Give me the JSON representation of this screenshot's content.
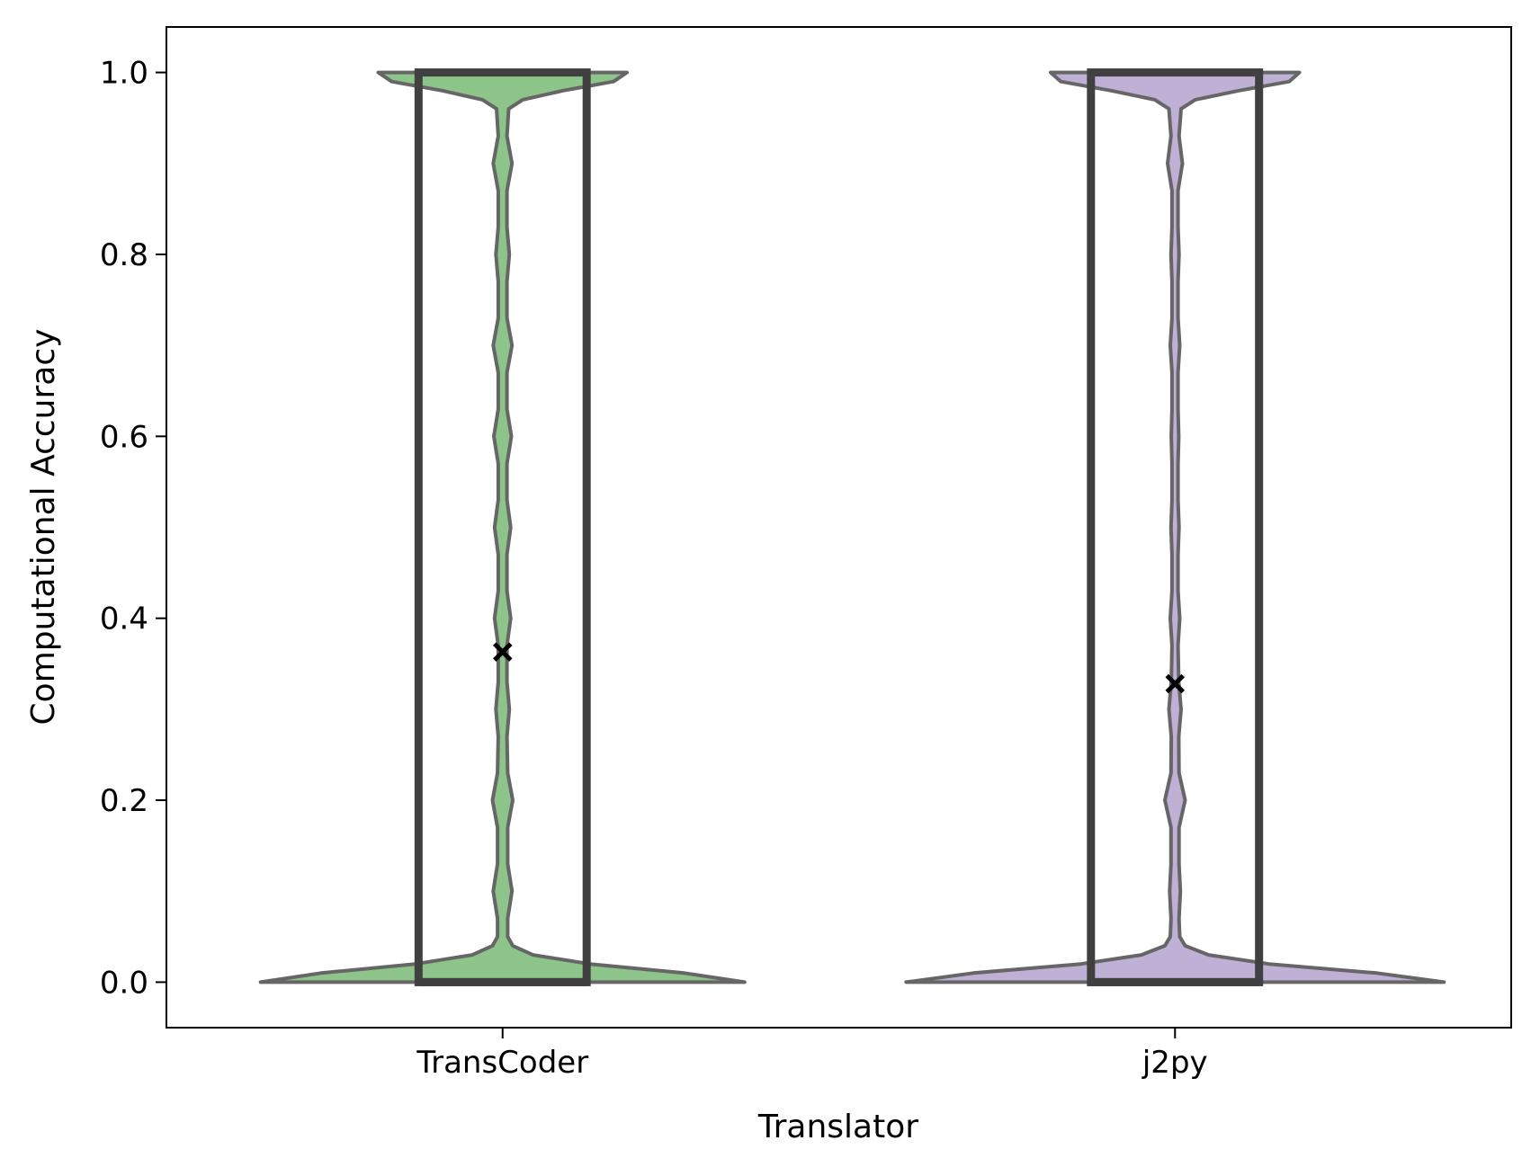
{
  "chart_data": {
    "type": "violin",
    "title": "",
    "xlabel": "Translator",
    "ylabel": "Computational Accuracy",
    "categories": [
      "TransCoder",
      "j2py"
    ],
    "ylim": [
      -0.05,
      1.05
    ],
    "yticks": [
      0.0,
      0.2,
      0.4,
      0.6,
      0.8,
      1.0
    ],
    "ytick_labels": [
      "0.0",
      "0.2",
      "0.4",
      "0.6",
      "0.8",
      "1.0"
    ],
    "grid": false,
    "legend": "none",
    "series": [
      {
        "category": "TransCoder",
        "color": "#8cc489",
        "mean": 0.363,
        "box": {
          "q1": 0.0,
          "median": 0.0,
          "q3": 1.0
        },
        "density": [
          {
            "y": 0.0,
            "w": 0.72
          },
          {
            "y": 0.01,
            "w": 0.54
          },
          {
            "y": 0.02,
            "w": 0.26
          },
          {
            "y": 0.03,
            "w": 0.09
          },
          {
            "y": 0.04,
            "w": 0.03
          },
          {
            "y": 0.05,
            "w": 0.015
          },
          {
            "y": 0.07,
            "w": 0.015
          },
          {
            "y": 0.1,
            "w": 0.028
          },
          {
            "y": 0.13,
            "w": 0.015
          },
          {
            "y": 0.17,
            "w": 0.015
          },
          {
            "y": 0.2,
            "w": 0.03
          },
          {
            "y": 0.23,
            "w": 0.015
          },
          {
            "y": 0.27,
            "w": 0.013
          },
          {
            "y": 0.3,
            "w": 0.02
          },
          {
            "y": 0.33,
            "w": 0.013
          },
          {
            "y": 0.37,
            "w": 0.013
          },
          {
            "y": 0.4,
            "w": 0.024
          },
          {
            "y": 0.43,
            "w": 0.013
          },
          {
            "y": 0.47,
            "w": 0.013
          },
          {
            "y": 0.5,
            "w": 0.024
          },
          {
            "y": 0.53,
            "w": 0.013
          },
          {
            "y": 0.57,
            "w": 0.013
          },
          {
            "y": 0.6,
            "w": 0.026
          },
          {
            "y": 0.63,
            "w": 0.013
          },
          {
            "y": 0.67,
            "w": 0.013
          },
          {
            "y": 0.7,
            "w": 0.028
          },
          {
            "y": 0.73,
            "w": 0.013
          },
          {
            "y": 0.77,
            "w": 0.013
          },
          {
            "y": 0.8,
            "w": 0.02
          },
          {
            "y": 0.83,
            "w": 0.013
          },
          {
            "y": 0.87,
            "w": 0.013
          },
          {
            "y": 0.9,
            "w": 0.028
          },
          {
            "y": 0.93,
            "w": 0.013
          },
          {
            "y": 0.96,
            "w": 0.018
          },
          {
            "y": 0.97,
            "w": 0.06
          },
          {
            "y": 0.98,
            "w": 0.18
          },
          {
            "y": 0.99,
            "w": 0.33
          },
          {
            "y": 1.0,
            "w": 0.37
          }
        ]
      },
      {
        "category": "j2py",
        "color": "#bfb1d5",
        "mean": 0.328,
        "box": {
          "q1": 0.0,
          "median": 0.0,
          "q3": 1.0
        },
        "density": [
          {
            "y": 0.0,
            "w": 0.8
          },
          {
            "y": 0.01,
            "w": 0.6
          },
          {
            "y": 0.02,
            "w": 0.28
          },
          {
            "y": 0.03,
            "w": 0.1
          },
          {
            "y": 0.04,
            "w": 0.03
          },
          {
            "y": 0.05,
            "w": 0.014
          },
          {
            "y": 0.07,
            "w": 0.012
          },
          {
            "y": 0.1,
            "w": 0.016
          },
          {
            "y": 0.13,
            "w": 0.012
          },
          {
            "y": 0.17,
            "w": 0.012
          },
          {
            "y": 0.2,
            "w": 0.03
          },
          {
            "y": 0.23,
            "w": 0.012
          },
          {
            "y": 0.27,
            "w": 0.011
          },
          {
            "y": 0.3,
            "w": 0.018
          },
          {
            "y": 0.33,
            "w": 0.011
          },
          {
            "y": 0.37,
            "w": 0.009
          },
          {
            "y": 0.4,
            "w": 0.014
          },
          {
            "y": 0.43,
            "w": 0.009
          },
          {
            "y": 0.47,
            "w": 0.009
          },
          {
            "y": 0.5,
            "w": 0.012
          },
          {
            "y": 0.53,
            "w": 0.009
          },
          {
            "y": 0.57,
            "w": 0.009
          },
          {
            "y": 0.6,
            "w": 0.011
          },
          {
            "y": 0.63,
            "w": 0.009
          },
          {
            "y": 0.67,
            "w": 0.009
          },
          {
            "y": 0.7,
            "w": 0.014
          },
          {
            "y": 0.73,
            "w": 0.009
          },
          {
            "y": 0.77,
            "w": 0.009
          },
          {
            "y": 0.8,
            "w": 0.012
          },
          {
            "y": 0.83,
            "w": 0.009
          },
          {
            "y": 0.87,
            "w": 0.009
          },
          {
            "y": 0.9,
            "w": 0.022
          },
          {
            "y": 0.93,
            "w": 0.012
          },
          {
            "y": 0.96,
            "w": 0.018
          },
          {
            "y": 0.97,
            "w": 0.06
          },
          {
            "y": 0.98,
            "w": 0.19
          },
          {
            "y": 0.99,
            "w": 0.34
          },
          {
            "y": 1.0,
            "w": 0.37
          }
        ]
      }
    ]
  }
}
